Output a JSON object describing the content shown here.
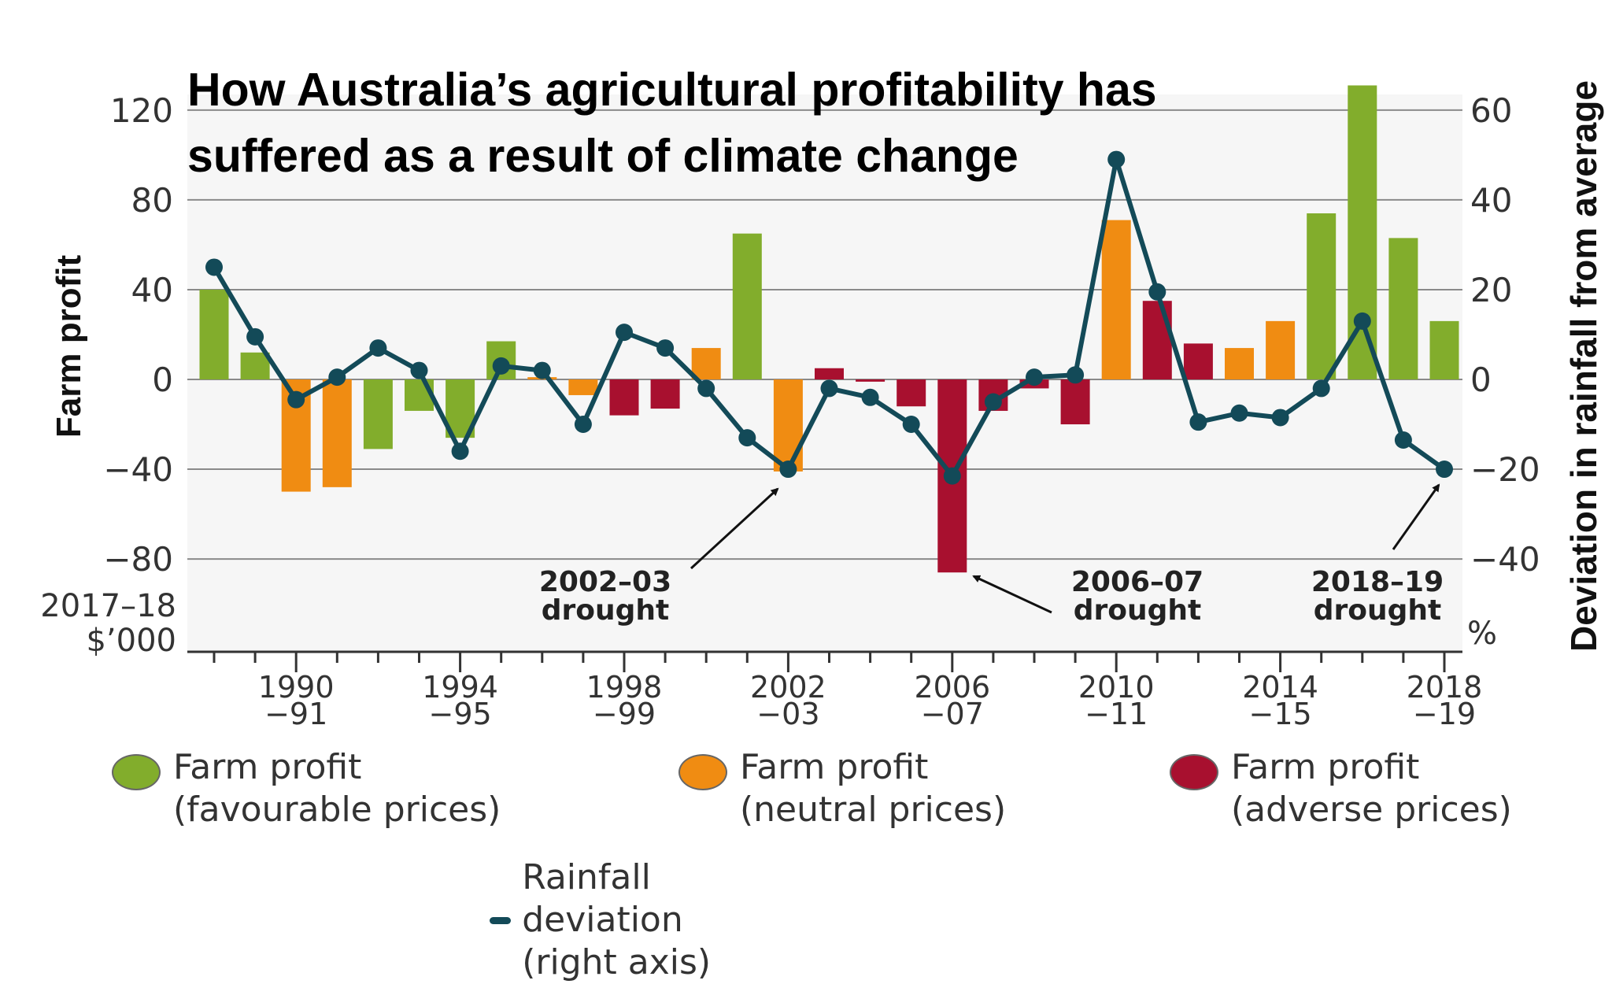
{
  "title_line1": "How Australia’s agricultural profitability has",
  "title_line2": "suffered as a result of climate change",
  "left_axis_title": "Farm profit",
  "right_axis_title": "Deviation in rainfall from average",
  "left_unit_line1": "2017–18",
  "left_unit_line2": "$’000",
  "right_unit": "%",
  "annotations": [
    {
      "line1": "2002–03",
      "line2": "drought"
    },
    {
      "line1": "2006–07",
      "line2": "drought"
    },
    {
      "line1": "2018–19",
      "line2": "drought"
    }
  ],
  "legend": {
    "favourable_line1": "Farm profit",
    "favourable_line2": "(favourable prices)",
    "neutral_line1": "Farm profit",
    "neutral_line2": "(neutral prices)",
    "adverse_line1": "Farm profit",
    "adverse_line2": "(adverse prices)",
    "rainfall": "Rainfall deviation (right axis)"
  },
  "colors": {
    "favourable": "#82ad2c",
    "neutral": "#f08c12",
    "adverse": "#a8102f",
    "rainfall": "#134a58",
    "grid": "#8a8a8a"
  },
  "chart_data": {
    "type": "bar",
    "x_start_year": 1988,
    "x_end_year": 2018,
    "x_tick_labels": [
      {
        "year": 1990,
        "line1": "1990",
        "line2": "−91"
      },
      {
        "year": 1994,
        "line1": "1994",
        "line2": "−95"
      },
      {
        "year": 1998,
        "line1": "1998",
        "line2": "−99"
      },
      {
        "year": 2002,
        "line1": "2002",
        "line2": "−03"
      },
      {
        "year": 2006,
        "line1": "2006",
        "line2": "−07"
      },
      {
        "year": 2010,
        "line1": "2010",
        "line2": "−11"
      },
      {
        "year": 2014,
        "line1": "2014",
        "line2": "−15"
      },
      {
        "year": 2018,
        "line1": "2018",
        "line2": "−19"
      }
    ],
    "left_axis": {
      "ylim": [
        -80,
        120
      ],
      "ticks": [
        -80,
        -40,
        0,
        40,
        80,
        120
      ],
      "tick_labels": [
        "−80",
        "−40",
        "0",
        "40",
        "80",
        "120"
      ]
    },
    "right_axis": {
      "ylim": [
        -40,
        60
      ],
      "ticks": [
        -40,
        -20,
        0,
        20,
        40,
        60
      ],
      "tick_labels": [
        "−40",
        "−20",
        "0",
        "20",
        "40",
        "60"
      ]
    },
    "grid": true,
    "farm_profit": [
      {
        "year": 1988,
        "value": 40,
        "prices": "favourable"
      },
      {
        "year": 1989,
        "value": 12,
        "prices": "favourable"
      },
      {
        "year": 1990,
        "value": -50,
        "prices": "neutral"
      },
      {
        "year": 1991,
        "value": -48,
        "prices": "neutral"
      },
      {
        "year": 1992,
        "value": -31,
        "prices": "favourable"
      },
      {
        "year": 1993,
        "value": -14,
        "prices": "favourable"
      },
      {
        "year": 1994,
        "value": -26,
        "prices": "favourable"
      },
      {
        "year": 1995,
        "value": 17,
        "prices": "favourable"
      },
      {
        "year": 1996,
        "value": 1,
        "prices": "neutral"
      },
      {
        "year": 1997,
        "value": -7,
        "prices": "neutral"
      },
      {
        "year": 1998,
        "value": -16,
        "prices": "adverse"
      },
      {
        "year": 1999,
        "value": -13,
        "prices": "adverse"
      },
      {
        "year": 2000,
        "value": 14,
        "prices": "neutral"
      },
      {
        "year": 2001,
        "value": 65,
        "prices": "favourable"
      },
      {
        "year": 2002,
        "value": -41,
        "prices": "neutral"
      },
      {
        "year": 2003,
        "value": 5,
        "prices": "adverse"
      },
      {
        "year": 2004,
        "value": -1,
        "prices": "adverse"
      },
      {
        "year": 2005,
        "value": -12,
        "prices": "adverse"
      },
      {
        "year": 2006,
        "value": -86,
        "prices": "adverse"
      },
      {
        "year": 2007,
        "value": -14,
        "prices": "adverse"
      },
      {
        "year": 2008,
        "value": -4,
        "prices": "adverse"
      },
      {
        "year": 2009,
        "value": -20,
        "prices": "adverse"
      },
      {
        "year": 2010,
        "value": 71,
        "prices": "neutral"
      },
      {
        "year": 2011,
        "value": 35,
        "prices": "adverse"
      },
      {
        "year": 2012,
        "value": 16,
        "prices": "adverse"
      },
      {
        "year": 2013,
        "value": 14,
        "prices": "neutral"
      },
      {
        "year": 2014,
        "value": 26,
        "prices": "neutral"
      },
      {
        "year": 2015,
        "value": 74,
        "prices": "favourable"
      },
      {
        "year": 2016,
        "value": 131,
        "prices": "favourable"
      },
      {
        "year": 2017,
        "value": 63,
        "prices": "favourable"
      },
      {
        "year": 2018,
        "value": 26,
        "prices": "favourable"
      }
    ],
    "rainfall_deviation": [
      {
        "year": 1988,
        "value": 25
      },
      {
        "year": 1989,
        "value": 9.5
      },
      {
        "year": 1990,
        "value": -4.5
      },
      {
        "year": 1991,
        "value": 0.5
      },
      {
        "year": 1992,
        "value": 7
      },
      {
        "year": 1993,
        "value": 2
      },
      {
        "year": 1994,
        "value": -16
      },
      {
        "year": 1995,
        "value": 3
      },
      {
        "year": 1996,
        "value": 2
      },
      {
        "year": 1997,
        "value": -10
      },
      {
        "year": 1998,
        "value": 10.5
      },
      {
        "year": 1999,
        "value": 7
      },
      {
        "year": 2000,
        "value": -2
      },
      {
        "year": 2001,
        "value": -13
      },
      {
        "year": 2002,
        "value": -20
      },
      {
        "year": 2003,
        "value": -2
      },
      {
        "year": 2004,
        "value": -4
      },
      {
        "year": 2005,
        "value": -10
      },
      {
        "year": 2006,
        "value": -21.5
      },
      {
        "year": 2007,
        "value": -5
      },
      {
        "year": 2008,
        "value": 0.5
      },
      {
        "year": 2009,
        "value": 1
      },
      {
        "year": 2010,
        "value": 49
      },
      {
        "year": 2011,
        "value": 19.5
      },
      {
        "year": 2012,
        "value": -9.5
      },
      {
        "year": 2013,
        "value": -7.5
      },
      {
        "year": 2014,
        "value": -8.5
      },
      {
        "year": 2015,
        "value": -2
      },
      {
        "year": 2016,
        "value": 13
      },
      {
        "year": 2017,
        "value": -13.5
      },
      {
        "year": 2018,
        "value": -20
      }
    ]
  }
}
